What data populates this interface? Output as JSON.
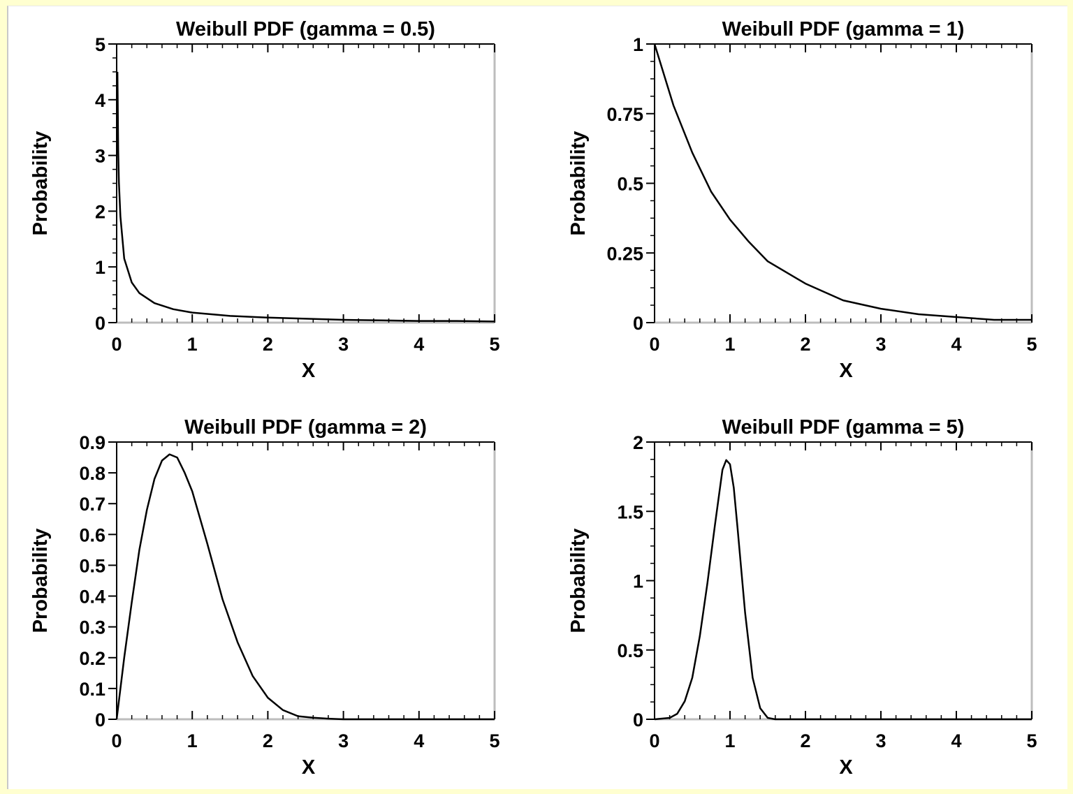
{
  "chart_data": [
    {
      "type": "line",
      "title": "Weibull PDF (gamma = 0.5)",
      "xlabel": "X",
      "ylabel": "Probability",
      "xlim": [
        0,
        5
      ],
      "ylim": [
        0,
        5
      ],
      "x_ticks": [
        "0",
        "1",
        "2",
        "3",
        "4",
        "5"
      ],
      "y_ticks": [
        "0",
        "1",
        "2",
        "3",
        "4",
        "5"
      ],
      "grid": false,
      "series": [
        {
          "x": [
            0.01,
            0.02,
            0.03,
            0.05,
            0.1,
            0.2,
            0.3,
            0.5,
            0.75,
            1,
            1.5,
            2,
            2.5,
            3,
            3.5,
            4,
            4.5,
            5
          ],
          "y": [
            4.5,
            3.1,
            2.52,
            1.9,
            1.15,
            0.72,
            0.53,
            0.35,
            0.24,
            0.18,
            0.12,
            0.09,
            0.07,
            0.05,
            0.04,
            0.03,
            0.03,
            0.02
          ]
        }
      ]
    },
    {
      "type": "line",
      "title": "Weibull PDF (gamma = 1)",
      "xlabel": "X",
      "ylabel": "Probability",
      "xlim": [
        0,
        5
      ],
      "ylim": [
        0,
        1
      ],
      "x_ticks": [
        "0",
        "1",
        "2",
        "3",
        "4",
        "5"
      ],
      "y_ticks": [
        "0",
        "0.25",
        "0.5",
        "0.75",
        "1"
      ],
      "grid": false,
      "series": [
        {
          "x": [
            0,
            0.25,
            0.5,
            0.75,
            1,
            1.25,
            1.5,
            2,
            2.5,
            3,
            3.5,
            4,
            4.5,
            5
          ],
          "y": [
            1,
            0.78,
            0.61,
            0.47,
            0.37,
            0.29,
            0.22,
            0.14,
            0.08,
            0.05,
            0.03,
            0.02,
            0.01,
            0.01
          ]
        }
      ]
    },
    {
      "type": "line",
      "title": "Weibull PDF (gamma = 2)",
      "xlabel": "X",
      "ylabel": "Probability",
      "xlim": [
        0,
        5
      ],
      "ylim": [
        0,
        0.9
      ],
      "x_ticks": [
        "0",
        "1",
        "2",
        "3",
        "4",
        "5"
      ],
      "y_ticks": [
        "0",
        "0.1",
        "0.2",
        "0.3",
        "0.4",
        "0.5",
        "0.6",
        "0.7",
        "0.8",
        "0.9"
      ],
      "grid": false,
      "series": [
        {
          "x": [
            0,
            0.1,
            0.2,
            0.3,
            0.4,
            0.5,
            0.6,
            0.7,
            0.8,
            0.9,
            1,
            1.2,
            1.4,
            1.6,
            1.8,
            2,
            2.2,
            2.4,
            2.6,
            2.8,
            3,
            4,
            5
          ],
          "y": [
            0,
            0.2,
            0.38,
            0.55,
            0.68,
            0.78,
            0.84,
            0.86,
            0.85,
            0.8,
            0.74,
            0.57,
            0.39,
            0.25,
            0.14,
            0.07,
            0.03,
            0.01,
            0.005,
            0.002,
            0,
            0,
            0
          ]
        }
      ]
    },
    {
      "type": "line",
      "title": "Weibull PDF (gamma = 5)",
      "xlabel": "X",
      "ylabel": "Probability",
      "xlim": [
        0,
        5
      ],
      "ylim": [
        0,
        2
      ],
      "x_ticks": [
        "0",
        "1",
        "2",
        "3",
        "4",
        "5"
      ],
      "y_ticks": [
        "0",
        "0.5",
        "1",
        "1.5",
        "2"
      ],
      "grid": false,
      "series": [
        {
          "x": [
            0,
            0.2,
            0.3,
            0.4,
            0.5,
            0.6,
            0.7,
            0.8,
            0.9,
            0.95,
            1,
            1.05,
            1.1,
            1.2,
            1.3,
            1.4,
            1.5,
            1.6,
            2,
            3,
            4,
            5
          ],
          "y": [
            0,
            0.01,
            0.04,
            0.13,
            0.3,
            0.6,
            0.98,
            1.4,
            1.8,
            1.87,
            1.84,
            1.67,
            1.38,
            0.77,
            0.3,
            0.08,
            0.01,
            0,
            0,
            0,
            0,
            0
          ]
        }
      ]
    }
  ]
}
